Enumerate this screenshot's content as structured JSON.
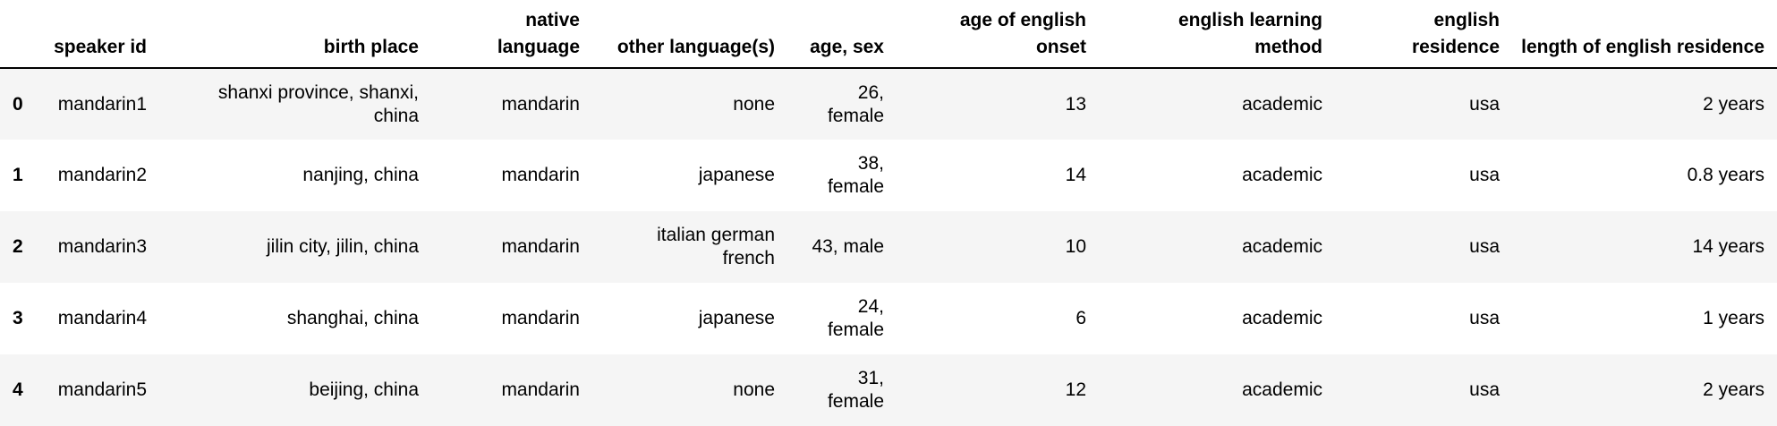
{
  "table": {
    "index_header": "",
    "columns": [
      "speaker id",
      "birth place",
      "native language",
      "other language(s)",
      "age, sex",
      "age of english onset",
      "english learning method",
      "english residence",
      "length of english residence"
    ],
    "rows": [
      {
        "index": "0",
        "cells": [
          "mandarin1",
          "shanxi province, shanxi, china",
          "mandarin",
          "none",
          "26, female",
          "13",
          "academic",
          "usa",
          "2 years"
        ]
      },
      {
        "index": "1",
        "cells": [
          "mandarin2",
          "nanjing, china",
          "mandarin",
          "japanese",
          "38, female",
          "14",
          "academic",
          "usa",
          "0.8 years"
        ]
      },
      {
        "index": "2",
        "cells": [
          "mandarin3",
          "jilin city, jilin, china",
          "mandarin",
          "italian german french",
          "43, male",
          "10",
          "academic",
          "usa",
          "14 years"
        ]
      },
      {
        "index": "3",
        "cells": [
          "mandarin4",
          "shanghai, china",
          "mandarin",
          "japanese",
          "24, female",
          "6",
          "academic",
          "usa",
          "1 years"
        ]
      },
      {
        "index": "4",
        "cells": [
          "mandarin5",
          "beijing, china",
          "mandarin",
          "none",
          "31, female",
          "12",
          "academic",
          "usa",
          "2 years"
        ]
      }
    ]
  }
}
